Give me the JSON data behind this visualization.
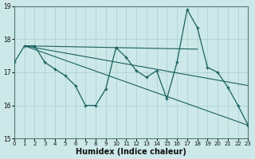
{
  "title": "",
  "xlabel": "Humidex (Indice chaleur)",
  "xlim": [
    0,
    23
  ],
  "ylim": [
    15,
    19
  ],
  "yticks": [
    15,
    16,
    17,
    18,
    19
  ],
  "xticks": [
    0,
    1,
    2,
    3,
    4,
    5,
    6,
    7,
    8,
    9,
    10,
    11,
    12,
    13,
    14,
    15,
    16,
    17,
    18,
    19,
    20,
    21,
    22,
    23
  ],
  "bg_color": "#cce8e8",
  "line_color": "#1a6060",
  "grid_color": "#aacccc",
  "line_main": {
    "x": [
      0,
      1,
      2,
      3,
      4,
      5,
      6,
      7,
      8,
      9,
      10,
      11,
      12,
      13,
      14,
      15,
      16,
      17,
      18,
      19,
      20,
      21,
      22,
      23
    ],
    "y": [
      17.3,
      17.8,
      17.8,
      17.3,
      17.1,
      16.9,
      16.6,
      16.0,
      16.0,
      16.5,
      17.75,
      17.45,
      17.05,
      16.85,
      17.05,
      16.2,
      17.3,
      18.9,
      18.35,
      17.15,
      17.0,
      16.55,
      16.0,
      15.4
    ]
  },
  "line_flat": {
    "x": [
      1,
      18
    ],
    "y": [
      17.8,
      17.7
    ]
  },
  "line_diag1": {
    "x": [
      1,
      23
    ],
    "y": [
      17.8,
      15.4
    ]
  },
  "line_diag2": {
    "x": [
      1,
      23
    ],
    "y": [
      17.8,
      15.4
    ]
  }
}
